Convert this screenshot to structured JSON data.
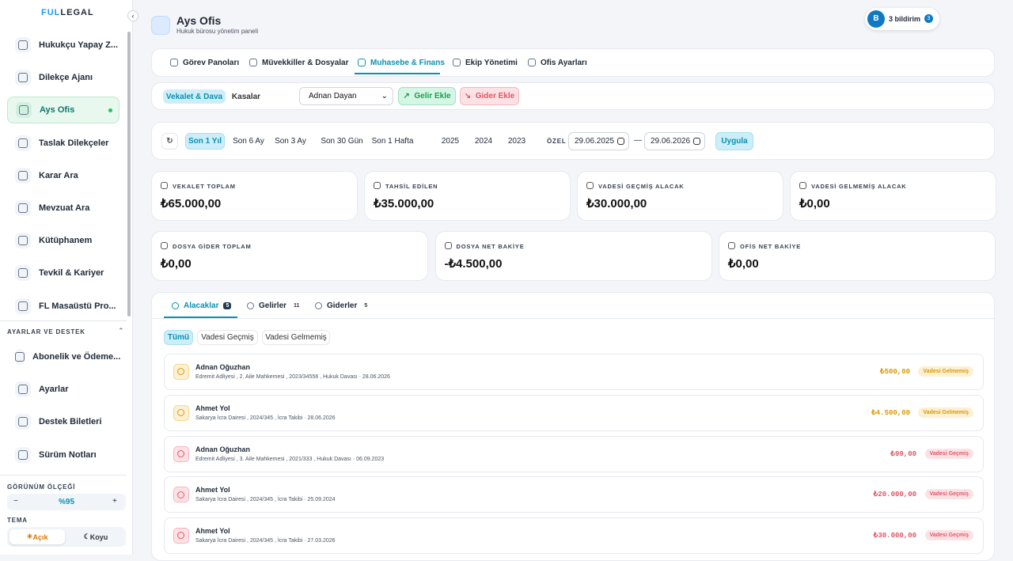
{
  "sidebar": {
    "logo": [
      "FUL",
      "LEGAL"
    ],
    "nav": [
      "Hukukçu Yapay Z...",
      "Dilekçe Ajanı",
      "Ays Ofis",
      "Taslak Dilekçeler",
      "Karar Ara",
      "Mevzuat Ara",
      "Kütüphanem",
      "Tevkil & Kariyer",
      "FL Masaüstü Pro..."
    ],
    "section": "AYARLAR VE DESTEK",
    "settings": [
      "Abonelik ve Ödeme...",
      "Ayarlar",
      "Destek Biletleri",
      "Sürüm Notları"
    ],
    "scale_label": "GÖRÜNÜM ÖLÇEĞİ",
    "scale_minus": "−",
    "scale_value": "%95",
    "scale_plus": "+",
    "theme_label": "TEMA",
    "theme_options": [
      "Açık",
      "Koyu"
    ]
  },
  "header": {
    "title": "Ays Ofis",
    "subtitle": "Hukuk bürosu yönetim paneli",
    "avatar": "B",
    "notifications": "3 bildirim",
    "badge": "3"
  },
  "tabs": [
    "Görev Panoları",
    "Müvekkiller & Dosyalar",
    "Muhasebe & Finans",
    "Ekip Yönetimi",
    "Ofis Ayarları"
  ],
  "subbar": {
    "views": [
      "Vekalet & Dava",
      "Kasalar"
    ],
    "client": "Adnan Dayan",
    "income": "Gelir Ekle",
    "expense": "Gider Ekle"
  },
  "filter": {
    "periods": [
      "Son 1 Yıl",
      "Son 6 Ay",
      "Son 3 Ay",
      "Son 30 Gün",
      "Son 1 Hafta"
    ],
    "years": [
      "2025",
      "2024",
      "2023"
    ],
    "custom": "ÖZEL",
    "from": "29.06.2025",
    "dash": "—",
    "to": "29.06.2026",
    "apply": "Uygula"
  },
  "stats": [
    {
      "label": "VEKALET TOPLAM",
      "value": "₺65.000,00"
    },
    {
      "label": "TAHSİL EDİLEN",
      "value": "₺35.000,00"
    },
    {
      "label": "VADESİ GEÇMİŞ ALACAK",
      "value": "₺30.000,00"
    },
    {
      "label": "VADESİ GELMEMİŞ ALACAK",
      "value": "₺0,00"
    },
    {
      "label": "DOSYA GİDER TOPLAM",
      "value": "₺0,00"
    },
    {
      "label": "DOSYA NET BAKİYE",
      "value": "-₺4.500,00"
    },
    {
      "label": "OFİS NET BAKİYE",
      "value": "₺0,00"
    }
  ],
  "panel": {
    "tabs": [
      {
        "label": "Alacaklar",
        "count": 5
      },
      {
        "label": "Gelirler",
        "count": 11
      },
      {
        "label": "Giderler",
        "count": 5
      }
    ],
    "filters": [
      "Tümü",
      "Vadesi Geçmiş",
      "Vadesi Gelmemiş"
    ],
    "rows": [
      {
        "name": "Adnan Oğuzhan",
        "detail": "Edremit Adliyesi , 2. Aile Mahkemesi , 2023/34556 , Hukuk Davası · 28.06.2026",
        "amount": "₺500,00",
        "status": "Vadesi Gelmemiş"
      },
      {
        "name": "Ahmet Yol",
        "detail": "Sakarya İcra Dairesi , 2024/345 , İcra Takibi · 28.06.2026",
        "amount": "₺4.500,00",
        "status": "Vadesi Gelmemiş"
      },
      {
        "name": "Adnan Oğuzhan",
        "detail": "Edremit Adliyesi , 3. Aile Mahkemesi , 2021/333 , Hukuk Davası · 06.09.2023",
        "amount": "₺99,00",
        "status": "Vadesi Geçmiş"
      },
      {
        "name": "Ahmet Yol",
        "detail": "Sakarya İcra Dairesi , 2024/345 , İcra Takibi · 25.09.2024",
        "amount": "₺20.000,00",
        "status": "Vadesi Geçmiş"
      },
      {
        "name": "Ahmet Yol",
        "detail": "Sakarya İcra Dairesi , 2024/345 , İcra Takibi · 27.03.2026",
        "amount": "₺30.000,00",
        "status": "Vadesi Geçmiş"
      }
    ]
  }
}
